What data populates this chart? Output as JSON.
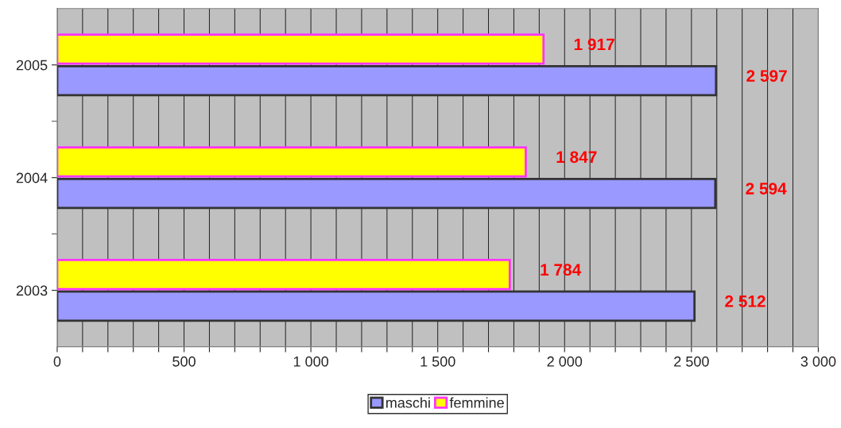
{
  "chart_data": {
    "type": "bar",
    "orientation": "horizontal",
    "categories": [
      "2005",
      "2004",
      "2003"
    ],
    "series": [
      {
        "name": "maschi",
        "color": "#9999ff",
        "values": [
          2597,
          2594,
          2512
        ],
        "value_labels": [
          "2 597",
          "2 594",
          "2 512"
        ]
      },
      {
        "name": "femmine",
        "color": "#ffff00",
        "values": [
          1917,
          1847,
          1784
        ],
        "value_labels": [
          "1 917",
          "1 847",
          "1 784"
        ]
      }
    ],
    "xlim": [
      0,
      3000
    ],
    "xticks": [
      0,
      {
        "value": 100,
        "label": null
      },
      {
        "value": 200,
        "label": null
      },
      {
        "value": 300,
        "label": null
      },
      {
        "value": 400,
        "label": null
      },
      500,
      {
        "value": 600,
        "label": null
      },
      {
        "value": 700,
        "label": null
      },
      {
        "value": 800,
        "label": null
      },
      {
        "value": 900,
        "label": null
      },
      {
        "value": 1000,
        "label": "1 000"
      },
      {
        "value": 1100,
        "label": null
      },
      {
        "value": 1200,
        "label": null
      },
      {
        "value": 1300,
        "label": null
      },
      {
        "value": 1400,
        "label": null
      },
      {
        "value": 1500,
        "label": "1 500"
      },
      {
        "value": 1600,
        "label": null
      },
      {
        "value": 1700,
        "label": null
      },
      {
        "value": 1800,
        "label": null
      },
      {
        "value": 1900,
        "label": null
      },
      {
        "value": 2000,
        "label": "2 000"
      },
      {
        "value": 2100,
        "label": null
      },
      {
        "value": 2200,
        "label": null
      },
      {
        "value": 2300,
        "label": null
      },
      {
        "value": 2400,
        "label": null
      },
      {
        "value": 2500,
        "label": "2 500"
      },
      {
        "value": 2600,
        "label": null
      },
      {
        "value": 2700,
        "label": null
      },
      {
        "value": 2800,
        "label": null
      },
      {
        "value": 2900,
        "label": null
      },
      {
        "value": 3000,
        "label": "3 000"
      }
    ],
    "grid": "x",
    "legend": "bottom"
  }
}
